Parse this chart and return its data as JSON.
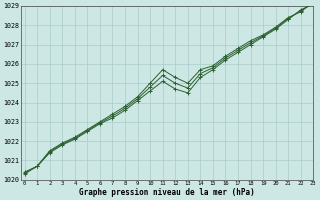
{
  "title": "Graphe pression niveau de la mer (hPa)",
  "bg_color": "#cde8e4",
  "grid_color": "#a8ccca",
  "line_color": "#2d6030",
  "xlim": [
    -0.3,
    23
  ],
  "ylim": [
    1020,
    1029
  ],
  "yticks": [
    1020,
    1021,
    1022,
    1023,
    1024,
    1025,
    1026,
    1027,
    1028,
    1029
  ],
  "xticks": [
    0,
    1,
    2,
    3,
    4,
    5,
    6,
    7,
    8,
    9,
    10,
    11,
    12,
    13,
    14,
    15,
    16,
    17,
    18,
    19,
    20,
    21,
    22,
    23
  ],
  "series1": {
    "x": [
      0,
      1,
      2,
      3,
      4,
      5,
      6,
      7,
      8,
      9,
      10,
      11,
      12,
      13,
      14,
      15,
      16,
      17,
      18,
      19,
      20,
      21,
      22,
      23
    ],
    "y": [
      1020.4,
      1020.7,
      1021.5,
      1021.9,
      1022.2,
      1022.6,
      1023.0,
      1023.4,
      1023.8,
      1024.3,
      1025.0,
      1025.7,
      1025.3,
      1025.0,
      1025.7,
      1025.9,
      1026.4,
      1026.8,
      1027.2,
      1027.5,
      1027.9,
      1028.4,
      1028.7,
      1029.2
    ]
  },
  "series2": {
    "x": [
      0,
      1,
      2,
      3,
      4,
      5,
      6,
      7,
      8,
      9,
      10,
      11,
      12,
      13,
      14,
      15,
      16,
      17,
      18,
      19,
      20,
      21,
      22,
      23
    ],
    "y": [
      1020.3,
      1020.7,
      1021.4,
      1021.8,
      1022.1,
      1022.5,
      1022.9,
      1023.2,
      1023.6,
      1024.1,
      1024.6,
      1025.1,
      1024.7,
      1024.5,
      1025.3,
      1025.7,
      1026.2,
      1026.6,
      1027.0,
      1027.4,
      1027.8,
      1028.3,
      1028.8,
      1029.1
    ]
  },
  "series3": {
    "x": [
      0,
      1,
      2,
      3,
      4,
      5,
      6,
      7,
      8,
      9,
      10,
      11,
      12,
      13,
      14,
      15,
      16,
      17,
      18,
      19,
      20,
      21,
      22,
      23
    ],
    "y": [
      1020.35,
      1020.7,
      1021.45,
      1021.85,
      1022.15,
      1022.55,
      1022.95,
      1023.3,
      1023.7,
      1024.2,
      1024.8,
      1025.4,
      1025.0,
      1024.75,
      1025.5,
      1025.8,
      1026.3,
      1026.7,
      1027.1,
      1027.45,
      1027.85,
      1028.35,
      1028.75,
      1029.15
    ]
  }
}
